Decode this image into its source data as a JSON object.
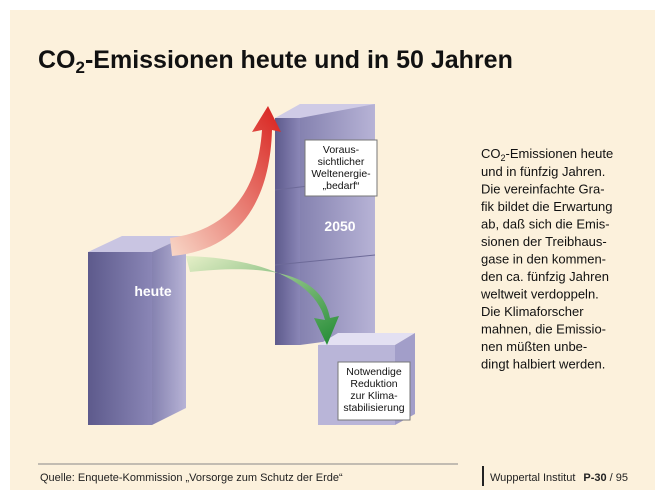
{
  "title": {
    "prefix": "CO",
    "subscript": "2",
    "rest": "-Emissionen heute und in 50 Jahren"
  },
  "blocks": {
    "today": "heute",
    "future": "2050"
  },
  "callouts": {
    "demand": [
      "Voraus-",
      "sichtlicher",
      "Weltenergie-",
      "„bedarf“"
    ],
    "reduction": [
      "Notwendige",
      "Reduktion",
      "zur Klima-",
      "stabilisierung"
    ]
  },
  "description": {
    "first_prefix": "CO",
    "first_subscript": "2",
    "first_rest": "-Emissionen heute",
    "lines": [
      "und in fünfzig Jahren.",
      "Die vereinfachte Gra-",
      "fik bildet die Erwartung",
      "ab, daß sich die Emis-",
      "sionen der Treibhaus-",
      "gase in den kommen-",
      "den ca. fünfzig Jahren",
      "weltweit verdoppeln.",
      "Die Klimaforscher",
      "mahnen, die Emissio-",
      "nen müßten unbe-",
      "dingt halbiert werden."
    ]
  },
  "footer": {
    "source": "Quelle: Enquete-Kommission „Vorsorge zum Schutz der Erde“",
    "institute": "Wuppertal Institut",
    "page": "P-30",
    "total": "/ 95"
  }
}
